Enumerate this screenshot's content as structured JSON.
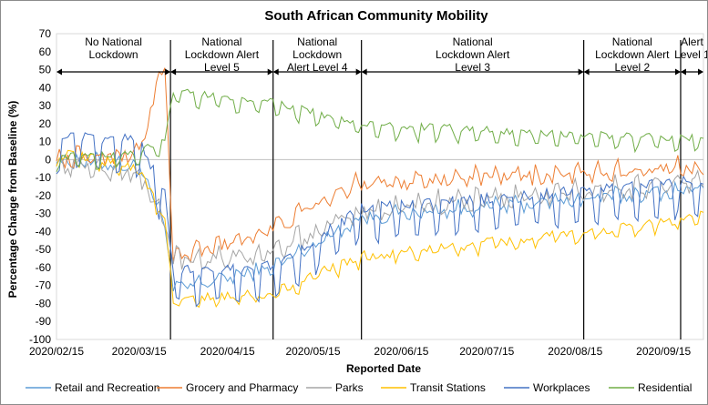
{
  "chart_data": {
    "type": "line",
    "title": "South African Community Mobility",
    "xlabel": "Reported Date",
    "ylabel": "Percentage Change from Baseline (%)",
    "ylim": [
      -100,
      70
    ],
    "yticks": [
      70,
      60,
      50,
      40,
      30,
      20,
      10,
      0,
      -10,
      -20,
      -30,
      -40,
      -50,
      -60,
      -70,
      -80,
      -90,
      -100
    ],
    "xlim": [
      "2020-02-15",
      "2020-09-29"
    ],
    "xticks": [
      {
        "date": "2020-02-15",
        "label": "2020/02/15"
      },
      {
        "date": "2020-03-15",
        "label": "2020/03/15"
      },
      {
        "date": "2020-04-15",
        "label": "2020/04/15"
      },
      {
        "date": "2020-05-15",
        "label": "2020/05/15"
      },
      {
        "date": "2020-06-15",
        "label": "2020/06/15"
      },
      {
        "date": "2020-07-15",
        "label": "2020/07/15"
      },
      {
        "date": "2020-08-15",
        "label": "2020/08/15"
      },
      {
        "date": "2020-09-15",
        "label": "2020/09/15"
      }
    ],
    "phases": [
      {
        "label": [
          "No National",
          "Lockdown"
        ],
        "start": "2020-02-15",
        "end": "2020-03-26"
      },
      {
        "label": [
          "National",
          "Lockdown Alert",
          "Level 5"
        ],
        "start": "2020-03-26",
        "end": "2020-05-01"
      },
      {
        "label": [
          "National",
          "Lockdown",
          "Alert Level 4"
        ],
        "start": "2020-05-01",
        "end": "2020-06-01"
      },
      {
        "label": [
          "National",
          "Lockdown Alert",
          "Level 3"
        ],
        "start": "2020-06-01",
        "end": "2020-08-18"
      },
      {
        "label": [
          "National",
          "Lockdown Alert",
          "Level 2"
        ],
        "start": "2020-08-18",
        "end": "2020-09-21"
      },
      {
        "label": [
          "Alert",
          "Level 1"
        ],
        "start": "2020-09-21",
        "end": "2020-09-29"
      }
    ],
    "legend_position": "bottom",
    "series": [
      {
        "name": "Retail and Recreation",
        "color": "#5b9bd5",
        "segments": [
          [
            "2020-02-15",
            0
          ],
          [
            "2020-03-15",
            -3
          ],
          [
            "2020-03-23",
            -30
          ],
          [
            "2020-03-27",
            -72
          ],
          [
            "2020-05-01",
            -60
          ],
          [
            "2020-06-01",
            -32
          ],
          [
            "2020-08-18",
            -22
          ],
          [
            "2020-09-29",
            -16
          ]
        ],
        "weekly_amp": 3,
        "noise": 4
      },
      {
        "name": "Grocery and Pharmacy",
        "color": "#ed7d31",
        "segments": [
          [
            "2020-02-15",
            0
          ],
          [
            "2020-03-15",
            4
          ],
          [
            "2020-03-24",
            55
          ],
          [
            "2020-03-27",
            -55
          ],
          [
            "2020-05-01",
            -38
          ],
          [
            "2020-06-01",
            -12
          ],
          [
            "2020-08-18",
            -8
          ],
          [
            "2020-09-29",
            -3
          ]
        ],
        "weekly_amp": 5,
        "noise": 4
      },
      {
        "name": "Parks",
        "color": "#a5a5a5",
        "segments": [
          [
            "2020-02-15",
            -2
          ],
          [
            "2020-03-15",
            -8
          ],
          [
            "2020-03-24",
            -35
          ],
          [
            "2020-03-27",
            -55
          ],
          [
            "2020-05-01",
            -52
          ],
          [
            "2020-06-01",
            -28
          ],
          [
            "2020-08-18",
            -18
          ],
          [
            "2020-09-29",
            -12
          ]
        ],
        "weekly_amp": 6,
        "noise": 5
      },
      {
        "name": "Transit Stations",
        "color": "#ffc000",
        "segments": [
          [
            "2020-02-15",
            2
          ],
          [
            "2020-03-15",
            -5
          ],
          [
            "2020-03-24",
            -35
          ],
          [
            "2020-03-27",
            -80
          ],
          [
            "2020-05-01",
            -75
          ],
          [
            "2020-06-01",
            -55
          ],
          [
            "2020-08-18",
            -42
          ],
          [
            "2020-09-29",
            -32
          ]
        ],
        "weekly_amp": 3,
        "noise": 3
      },
      {
        "name": "Workplaces",
        "color": "#4472c4",
        "segments": [
          [
            "2020-02-15",
            2
          ],
          [
            "2020-03-15",
            0
          ],
          [
            "2020-03-24",
            -30
          ],
          [
            "2020-03-27",
            -72
          ],
          [
            "2020-05-01",
            -70
          ],
          [
            "2020-06-01",
            -38
          ],
          [
            "2020-08-18",
            -28
          ],
          [
            "2020-09-29",
            -22
          ]
        ],
        "weekly_amp": 18,
        "noise": 3
      },
      {
        "name": "Residential",
        "color": "#70ad47",
        "segments": [
          [
            "2020-02-15",
            0
          ],
          [
            "2020-03-15",
            2
          ],
          [
            "2020-03-24",
            10
          ],
          [
            "2020-03-27",
            36
          ],
          [
            "2020-05-01",
            30
          ],
          [
            "2020-06-01",
            18
          ],
          [
            "2020-08-18",
            12
          ],
          [
            "2020-09-29",
            10
          ]
        ],
        "weekly_amp": 5,
        "noise": 2
      }
    ]
  }
}
